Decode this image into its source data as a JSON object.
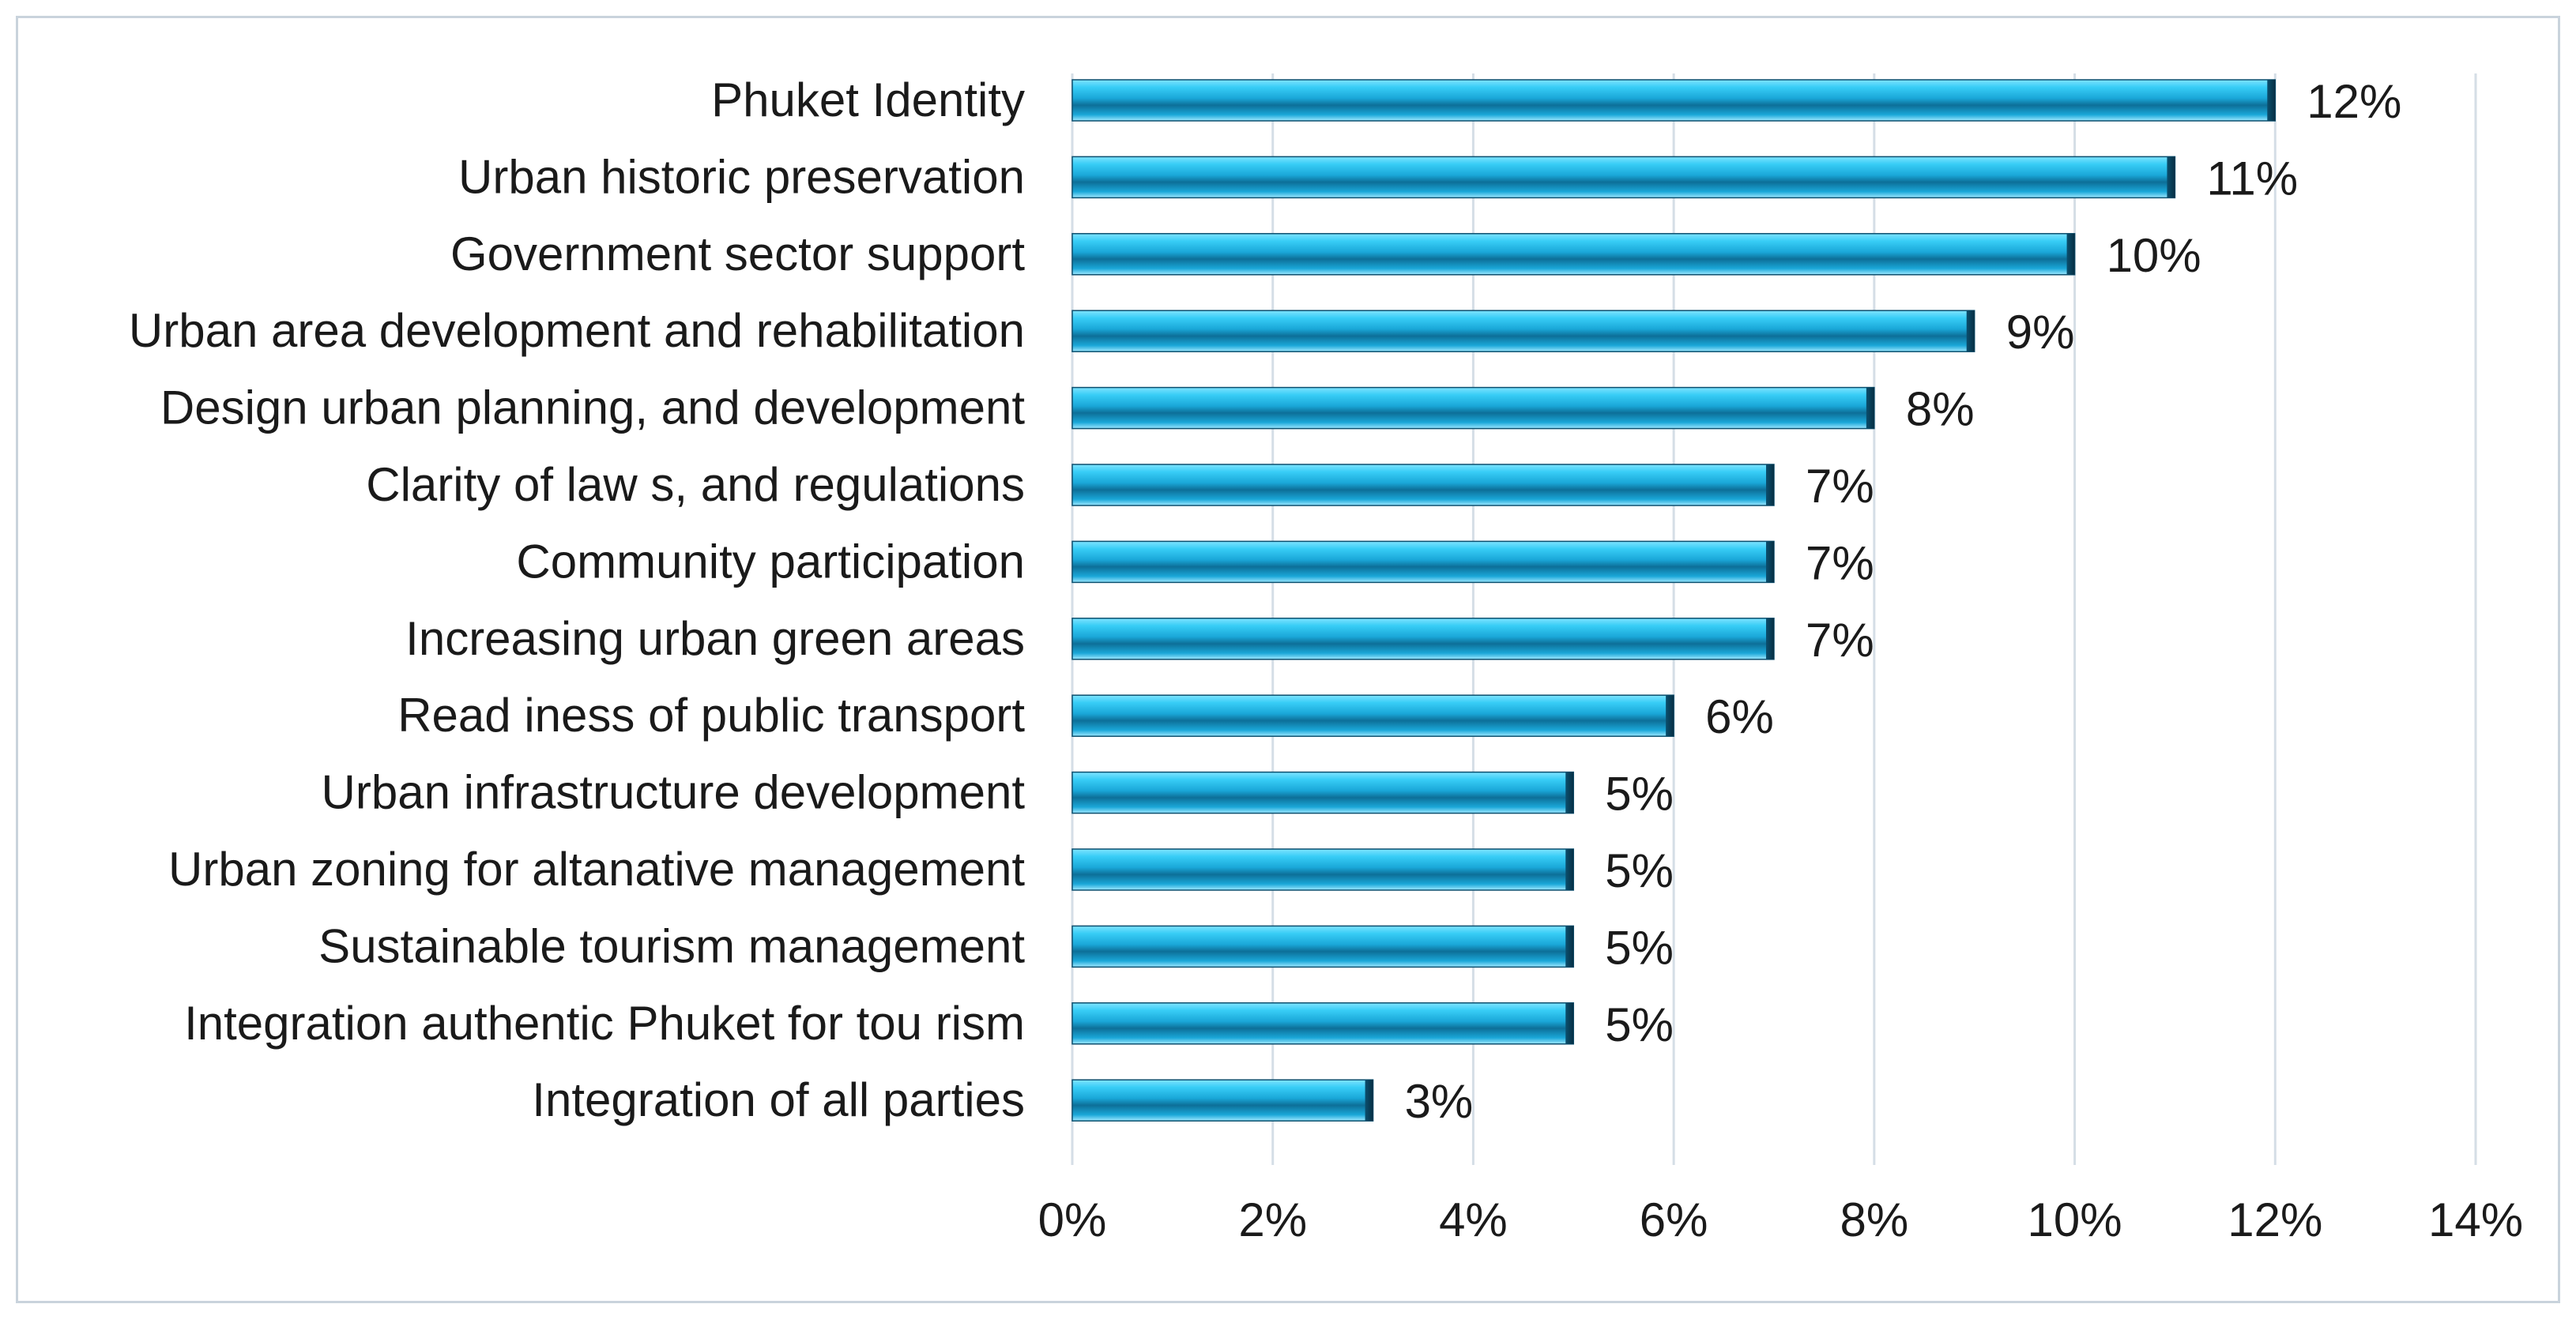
{
  "chart_data": {
    "type": "bar",
    "orientation": "horizontal",
    "title": "",
    "xlabel": "",
    "ylabel": "",
    "categories": [
      "Phuket Identity",
      "Urban historic preservation",
      "Government sector support",
      "Urban area development and rehabilitation",
      "Design urban planning, and development",
      "Clarity of law s, and regulations",
      "Community participation",
      "Increasing urban green areas",
      "Read iness of public transport",
      "Urban infrastructure development",
      "Urban zoning for altanative management",
      "Sustainable tourism management",
      "Integration authentic Phuket for tou rism",
      "Integration of all parties"
    ],
    "values": [
      12,
      11,
      10,
      9,
      8,
      7,
      7,
      7,
      6,
      5,
      5,
      5,
      5,
      3
    ],
    "value_labels": [
      "12%",
      "11%",
      "10%",
      "9%",
      "8%",
      "7%",
      "7%",
      "7%",
      "6%",
      "5%",
      "5%",
      "5%",
      "5%",
      "3%"
    ],
    "xlim": [
      0,
      14
    ],
    "x_ticks": [
      0,
      2,
      4,
      6,
      8,
      10,
      12,
      14
    ],
    "x_tick_labels": [
      "0%",
      "2%",
      "4%",
      "6%",
      "8%",
      "10%",
      "12%",
      "14%"
    ],
    "grid": true,
    "legend": "none",
    "colors": {
      "bar_light": "#38cdf6",
      "bar_mid": "#1aa7d8",
      "bar_dark": "#0d6f98",
      "bar_edge": "#0b4f6e",
      "grid": "#d5dee6"
    }
  }
}
